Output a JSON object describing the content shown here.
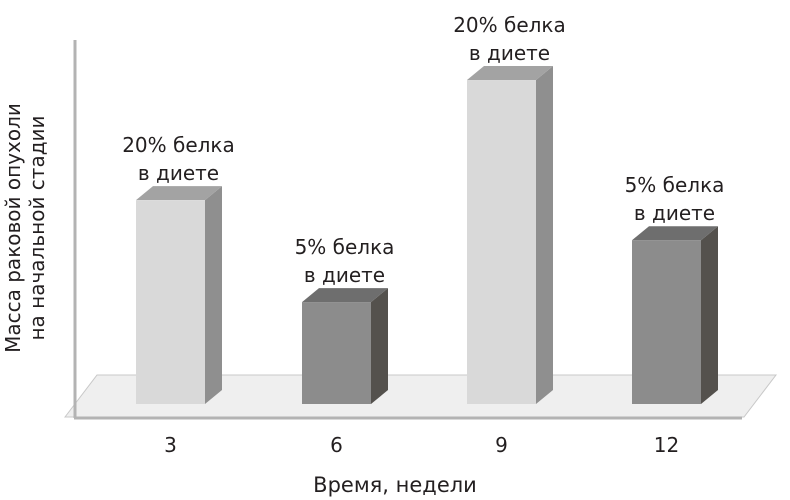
{
  "chart_data": {
    "type": "bar",
    "style": "3d",
    "title": "",
    "xlabel": "Время, недели",
    "ylabel": [
      "Масса раковой опухоли",
      "на начальной стадии"
    ],
    "categories": [
      "3",
      "6",
      "9",
      "12"
    ],
    "values": [
      56,
      28,
      89,
      45
    ],
    "ylim": [
      0,
      100
    ],
    "y_ticks_shown": false,
    "grid": false,
    "annotations": [
      [
        "20% белка",
        "в диете"
      ],
      [
        "5% белка",
        "в диете"
      ],
      [
        "20% белка",
        "в диете"
      ],
      [
        "5% белка",
        "в диете"
      ]
    ],
    "bar_colors": [
      {
        "face": "#d9d9d9",
        "side": "#8f8f8f",
        "top": "#a3a3a3"
      },
      {
        "face": "#8c8c8c",
        "side": "#54514d",
        "top": "#6e6e6e"
      },
      {
        "face": "#d9d9d9",
        "side": "#8f8f8f",
        "top": "#a3a3a3"
      },
      {
        "face": "#8c8c8c",
        "side": "#54514d",
        "top": "#6e6e6e"
      }
    ]
  }
}
